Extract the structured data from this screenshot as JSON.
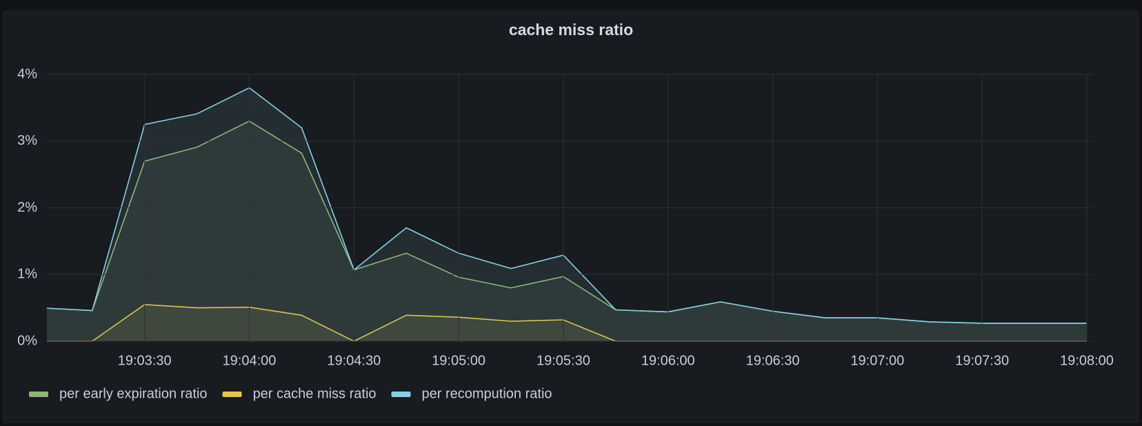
{
  "chart_data": {
    "type": "line",
    "title": "cache miss ratio",
    "x": [
      "19:03:00",
      "19:03:15",
      "19:03:30",
      "19:03:45",
      "19:04:00",
      "19:04:15",
      "19:04:30",
      "19:04:45",
      "19:05:00",
      "19:05:15",
      "19:05:30",
      "19:05:45",
      "19:06:00",
      "19:06:15",
      "19:06:30",
      "19:06:45",
      "19:07:00",
      "19:07:15",
      "19:07:30",
      "19:07:45",
      "19:08:00"
    ],
    "series": [
      {
        "name": "per early expiration ratio",
        "color": "#8fb573",
        "values": [
          0.5,
          0.46,
          2.7,
          2.91,
          3.3,
          2.82,
          1.07,
          1.32,
          0.96,
          0.8,
          0.97,
          0.47,
          0.44,
          0.59,
          0.45,
          0.35,
          0.35,
          0.29,
          0.27,
          0.27,
          0.27
        ]
      },
      {
        "name": "per cache miss ratio",
        "color": "#e6c34b",
        "values": [
          0,
          0,
          0.55,
          0.5,
          0.51,
          0.39,
          0,
          0.39,
          0.36,
          0.3,
          0.32,
          0,
          0,
          0,
          0,
          0,
          0,
          0,
          0,
          0,
          0
        ]
      },
      {
        "name": "per recompution ratio",
        "color": "#87cfe6",
        "values": [
          0.5,
          0.46,
          3.25,
          3.41,
          3.8,
          3.2,
          1.07,
          1.7,
          1.32,
          1.09,
          1.29,
          0.47,
          0.44,
          0.59,
          0.45,
          0.35,
          0.35,
          0.29,
          0.27,
          0.27,
          0.27
        ]
      }
    ],
    "xlim": [
      "19:03:02",
      "19:08:00"
    ],
    "xticks": [
      "19:03:30",
      "19:04:00",
      "19:04:30",
      "19:05:00",
      "19:05:30",
      "19:06:00",
      "19:06:30",
      "19:07:00",
      "19:07:30",
      "19:08:00"
    ],
    "ylim": [
      0,
      4
    ],
    "yticks": [
      {
        "value": 0,
        "label": "0%"
      },
      {
        "value": 1,
        "label": "1%"
      },
      {
        "value": 2,
        "label": "2%"
      },
      {
        "value": 3,
        "label": "3%"
      },
      {
        "value": 4,
        "label": "4%"
      }
    ],
    "grid": true,
    "legend": "bottom-left"
  }
}
